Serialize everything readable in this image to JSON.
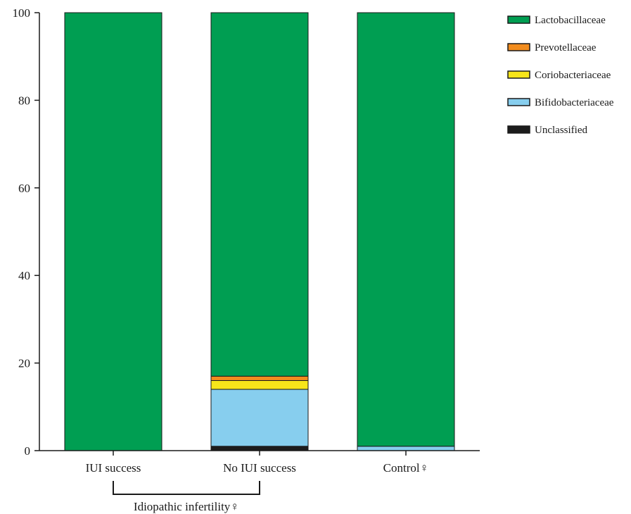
{
  "chart_data": {
    "type": "bar",
    "stacked": true,
    "categories": [
      "IUI success",
      "No IUI success",
      "Control♀"
    ],
    "series": [
      {
        "name": "Unclassified",
        "color": "#1c1c1c",
        "values": [
          0,
          1,
          0
        ]
      },
      {
        "name": "Bifidobacteriaceae",
        "color": "#87ceee",
        "values": [
          0,
          13,
          1
        ]
      },
      {
        "name": "Coriobacteriaceae",
        "color": "#f7e51a",
        "values": [
          0,
          2,
          0
        ]
      },
      {
        "name": "Prevotellaceae",
        "color": "#f28c1e",
        "values": [
          0,
          1,
          0
        ]
      },
      {
        "name": "Lactobacillaceae",
        "color": "#009e52",
        "values": [
          100,
          83,
          99
        ]
      }
    ],
    "legend_order": [
      "Lactobacillaceae",
      "Prevotellaceae",
      "Coriobacteriaceae",
      "Bifidobacteriaceae",
      "Unclassified"
    ],
    "legend_position": "top-right",
    "ylim": [
      0,
      100
    ],
    "yticks": [
      0,
      20,
      40,
      60,
      80,
      100
    ],
    "grid": false,
    "bracket": {
      "label": "Idiopathic infertility♀",
      "spans": [
        "IUI success",
        "No IUI success"
      ]
    },
    "title": "",
    "xlabel": "",
    "ylabel": ""
  }
}
